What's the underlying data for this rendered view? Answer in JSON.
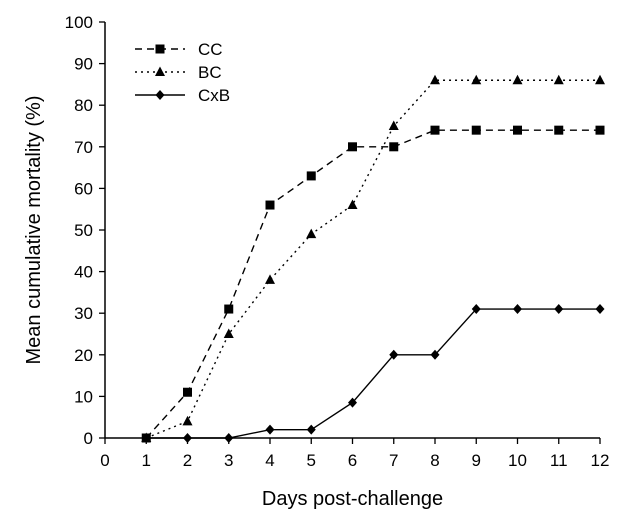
{
  "chart_data": {
    "type": "line",
    "title": "",
    "xlabel": "Days post-challenge",
    "ylabel": "Mean cumulative mortality (%)",
    "xlim": [
      0,
      12
    ],
    "ylim": [
      0,
      100
    ],
    "x_ticks": [
      0,
      1,
      2,
      3,
      4,
      5,
      6,
      7,
      8,
      9,
      10,
      11,
      12
    ],
    "y_ticks": [
      0,
      10,
      20,
      30,
      40,
      50,
      60,
      70,
      80,
      90,
      100
    ],
    "grid": false,
    "legend_position": "top-left",
    "x": [
      1,
      2,
      3,
      4,
      5,
      6,
      7,
      8,
      9,
      10,
      11,
      12
    ],
    "series": [
      {
        "name": "CC",
        "line_style": "dashed",
        "marker": "square",
        "values": [
          0,
          11,
          31,
          56,
          63,
          70,
          70,
          74,
          74,
          74,
          74,
          74
        ]
      },
      {
        "name": "BC",
        "line_style": "dotted",
        "marker": "triangle",
        "values": [
          0,
          4,
          25,
          38,
          49,
          56,
          75,
          86,
          86,
          86,
          86,
          86
        ]
      },
      {
        "name": "CxB",
        "line_style": "solid",
        "marker": "diamond",
        "values": [
          0,
          0,
          0,
          2,
          2,
          8.5,
          20,
          20,
          31,
          31,
          31,
          31
        ]
      }
    ],
    "colors": {
      "line": "#000000",
      "marker": "#000000"
    }
  }
}
